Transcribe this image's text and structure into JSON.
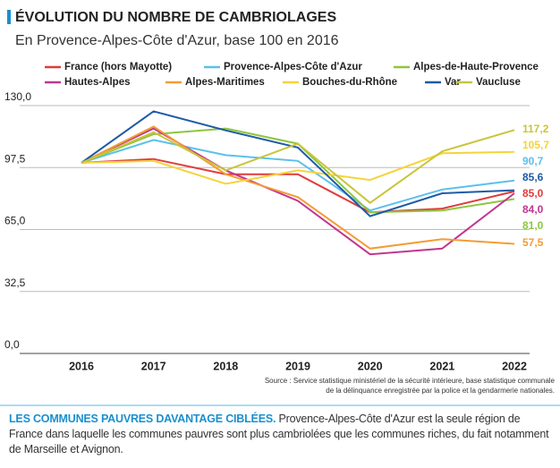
{
  "chart_data": {
    "type": "line",
    "title": "ÉVOLUTION DU NOMBRE DE CAMBRIOLAGES",
    "subtitle": "En Provence-Alpes-Côte d'Azur, base 100 en 2016",
    "categories": [
      "2016",
      "2017",
      "2018",
      "2019",
      "2020",
      "2021",
      "2022"
    ],
    "series": [
      {
        "name": "France (hors Mayotte)",
        "color": "#e03c3c",
        "values": [
          100,
          102,
          94,
          94,
          74,
          76,
          85.0
        ],
        "value_labels": [
          null,
          null,
          null,
          null,
          null,
          null,
          "85,0"
        ]
      },
      {
        "name": "Provence-Alpes-Côte d'Azur",
        "color": "#5bc0eb",
        "values": [
          100,
          112,
          104,
          101,
          75,
          86,
          90.7
        ],
        "value_labels": [
          null,
          null,
          null,
          null,
          null,
          null,
          "90,7"
        ]
      },
      {
        "name": "Alpes-de-Haute-Provence",
        "color": "#8dc63f",
        "values": [
          100,
          115,
          118,
          110,
          74,
          75,
          81.0
        ],
        "value_labels": [
          null,
          null,
          null,
          null,
          null,
          null,
          "81,0"
        ]
      },
      {
        "name": "Hautes-Alpes",
        "color": "#c2368f",
        "values": [
          100,
          118,
          96,
          80,
          52,
          55,
          84.0
        ],
        "value_labels": [
          null,
          null,
          null,
          null,
          null,
          null,
          "84,0"
        ]
      },
      {
        "name": "Alpes-Maritimes",
        "color": "#f39c35",
        "values": [
          100,
          119,
          94,
          82,
          55,
          60,
          57.5
        ],
        "value_labels": [
          null,
          null,
          null,
          null,
          null,
          null,
          "57,5"
        ]
      },
      {
        "name": "Bouches-du-Rhône",
        "color": "#f5d33a",
        "values": [
          100,
          101,
          89,
          96,
          91,
          105,
          105.7
        ],
        "value_labels": [
          null,
          null,
          null,
          null,
          null,
          null,
          "105,7"
        ]
      },
      {
        "name": "Var",
        "color": "#1f5aa6",
        "values": [
          100,
          127,
          117,
          108,
          72,
          84,
          85.6
        ],
        "value_labels": [
          null,
          null,
          null,
          null,
          null,
          null,
          "85,6"
        ]
      },
      {
        "name": "Vaucluse",
        "color": "#c9c43a",
        "values": [
          100,
          116,
          96,
          110,
          79,
          106,
          117.2
        ],
        "value_labels": [
          null,
          null,
          null,
          null,
          null,
          null,
          "117,2"
        ]
      }
    ],
    "ylim": [
      0,
      130
    ],
    "yticks": [
      {
        "value": 0,
        "label": "0,0"
      },
      {
        "value": 32.5,
        "label": "32,5"
      },
      {
        "value": 65,
        "label": "65,0"
      },
      {
        "value": 97.5,
        "label": "97,5"
      },
      {
        "value": 130,
        "label": "130,0"
      }
    ],
    "grid": true,
    "source": [
      "Source : Service statistique ministériel de la sécurité intérieure, base statistique communale",
      "de la délinquance enregistrée par la police et la gendarmerie nationales."
    ]
  },
  "footer": {
    "highlight": "LES COMMUNES PAUVRES DAVANTAGE CIBLÉES.",
    "text": "Provence-Alpes-Côte d'Azur est la seule région de France dans laquelle les communes pauvres sont plus cambriolées que les communes riches, du fait notamment de Marseille et Avignon."
  }
}
